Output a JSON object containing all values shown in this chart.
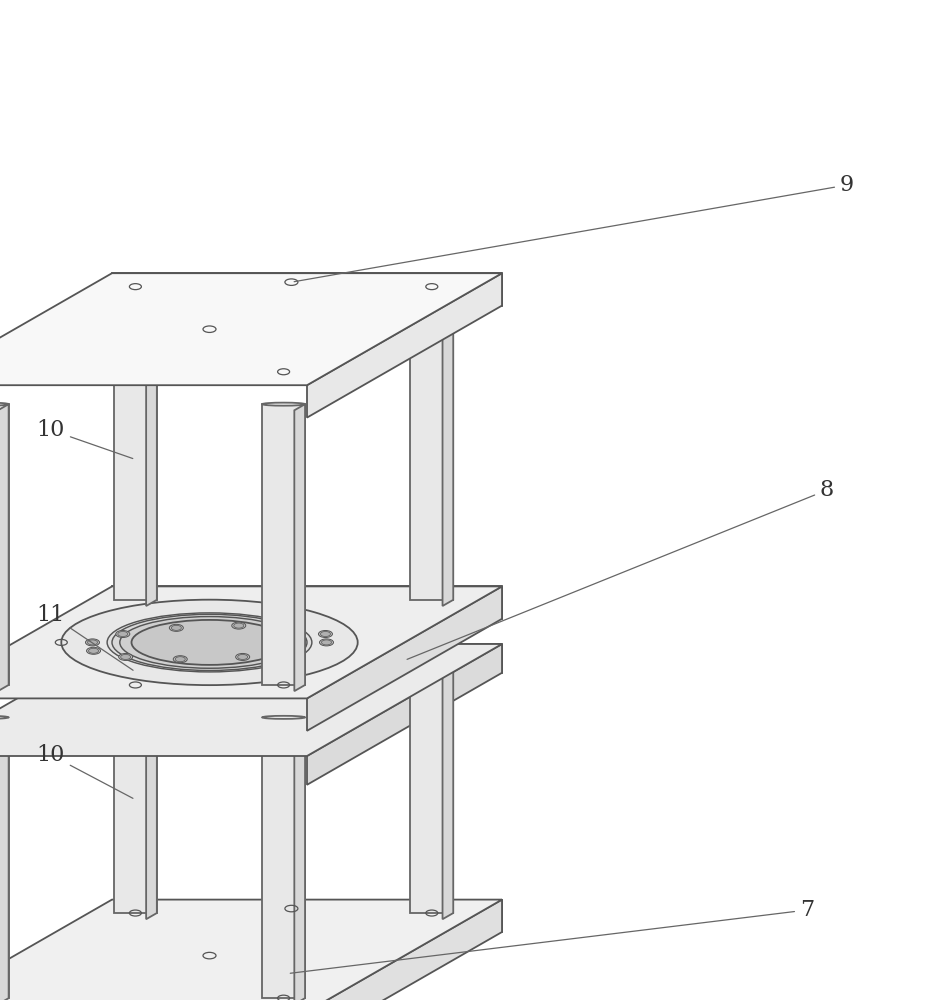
{
  "background_color": "#ffffff",
  "line_color": "#555555",
  "line_width": 1.3,
  "label_fontsize": 16,
  "figsize": [
    9.29,
    10.0
  ],
  "dpi": 100,
  "face_top": "#f2f2f2",
  "face_right": "#e2e2e2",
  "face_front": "#d8d8d8",
  "face_mid_plate": "#ededed",
  "cylinder_face": "#e8e8e8",
  "cylinder_edge": "#666666"
}
